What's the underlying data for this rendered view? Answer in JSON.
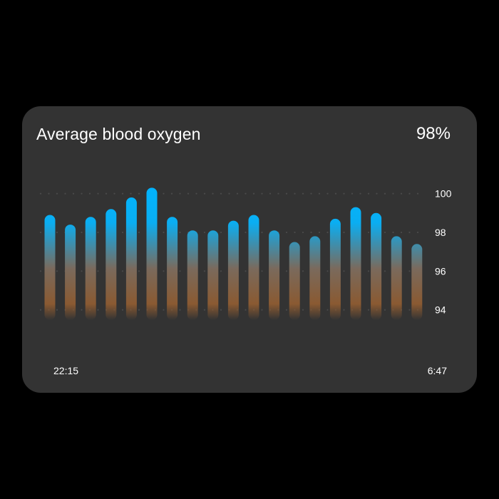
{
  "card": {
    "title": "Average blood oxygen",
    "value": "98%"
  },
  "colors": {
    "background": "#000000",
    "card": "#333333",
    "bar_top": "#00b4ff",
    "bar_bottom": "#8a5a32",
    "text": "#ffffff",
    "grid_dot": "#4a4a4a"
  },
  "chart_data": {
    "type": "bar",
    "title": "Average blood oxygen",
    "ylim": [
      93.4,
      100.5
    ],
    "yticks": [
      94,
      96,
      98,
      100
    ],
    "ytick_labels": [
      "94",
      "96",
      "98",
      "100"
    ],
    "xtick_labels": [
      "22:15",
      "6:47"
    ],
    "values": [
      98.9,
      98.4,
      98.8,
      99.2,
      99.8,
      100.3,
      98.8,
      98.1,
      98.1,
      98.6,
      98.9,
      98.1,
      97.5,
      97.8,
      98.7,
      99.3,
      99.0,
      97.8,
      97.4
    ],
    "grid": true,
    "grid_style": "dotted"
  }
}
